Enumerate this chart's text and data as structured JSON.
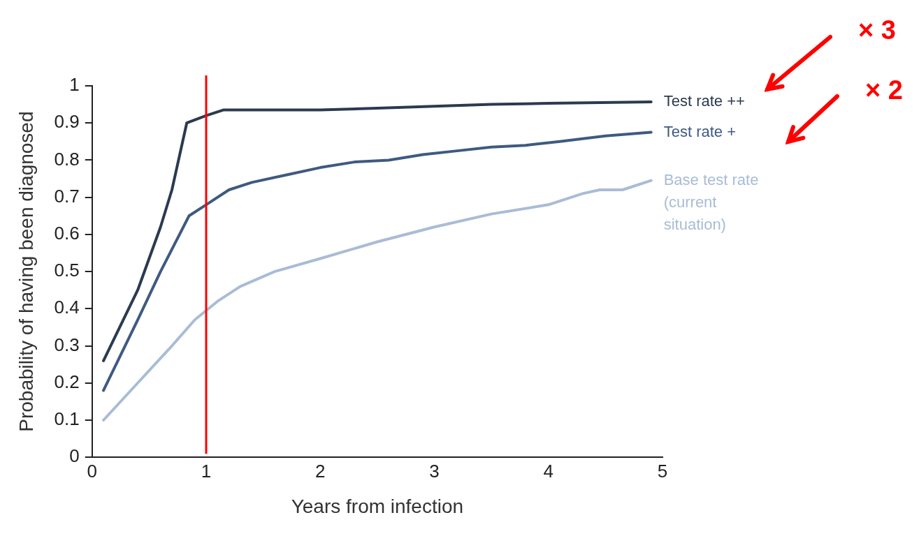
{
  "chart_data": {
    "type": "line",
    "xlabel": "Years from infection",
    "ylabel": "Probability of having been diagnosed",
    "xlim": [
      0,
      5
    ],
    "xticks": [
      0,
      1,
      2,
      3,
      4,
      5
    ],
    "ylim": [
      0,
      1
    ],
    "yticks": [
      0,
      0.1,
      0.2,
      0.3,
      0.4,
      0.5,
      0.6,
      0.7,
      0.8,
      0.9,
      1
    ],
    "grid": false,
    "legend": false,
    "marker": "none",
    "line_style": "solid",
    "series": [
      {
        "name": "Test rate ++",
        "color": "#2b3a4f",
        "x": [
          0.1,
          0.4,
          0.6,
          0.7,
          0.83,
          1.0,
          1.15,
          2,
          2.5,
          3,
          3.5,
          4,
          4.9
        ],
        "values": [
          0.26,
          0.45,
          0.62,
          0.72,
          0.9,
          0.92,
          0.935,
          0.935,
          0.94,
          0.945,
          0.95,
          0.953,
          0.957
        ]
      },
      {
        "name": "Test rate +",
        "color": "#3f5a80",
        "x": [
          0.1,
          0.4,
          0.6,
          0.85,
          1.0,
          1.2,
          1.4,
          1.7,
          2.0,
          2.3,
          2.6,
          2.9,
          3.2,
          3.5,
          3.8,
          4.1,
          4.5,
          4.9
        ],
        "values": [
          0.18,
          0.37,
          0.5,
          0.65,
          0.68,
          0.72,
          0.74,
          0.76,
          0.78,
          0.795,
          0.8,
          0.815,
          0.825,
          0.835,
          0.84,
          0.85,
          0.865,
          0.875
        ]
      },
      {
        "name": "Base test rate (current situation)",
        "color": "#a9bcd6",
        "x": [
          0.1,
          0.4,
          0.7,
          0.9,
          1.1,
          1.3,
          1.6,
          2.0,
          2.5,
          3.0,
          3.5,
          4.0,
          4.3,
          4.45,
          4.65,
          4.9
        ],
        "values": [
          0.1,
          0.2,
          0.3,
          0.37,
          0.42,
          0.46,
          0.5,
          0.535,
          0.58,
          0.62,
          0.655,
          0.68,
          0.71,
          0.72,
          0.72,
          0.745
        ]
      }
    ],
    "ref_lines": [
      {
        "axis": "x",
        "value": 1,
        "color": "#ff0000"
      }
    ],
    "annotations": [
      "× 3",
      "× 2"
    ]
  }
}
